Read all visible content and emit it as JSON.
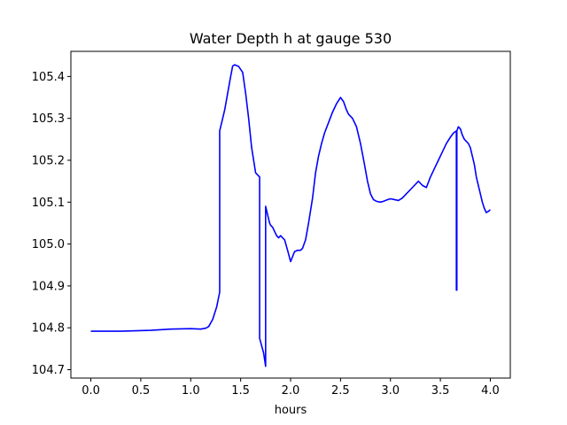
{
  "chart_data": {
    "type": "line",
    "title": "Water Depth h at gauge 530",
    "xlabel": "hours",
    "ylabel": "",
    "xlim": [
      -0.2,
      4.2
    ],
    "ylim": [
      104.68,
      105.46
    ],
    "xticks": [
      0.0,
      0.5,
      1.0,
      1.5,
      2.0,
      2.5,
      3.0,
      3.5,
      4.0
    ],
    "xtick_labels": [
      "0.0",
      "0.5",
      "1.0",
      "1.5",
      "2.0",
      "2.5",
      "3.0",
      "3.5",
      "4.0"
    ],
    "yticks": [
      104.7,
      104.8,
      104.9,
      105.0,
      105.1,
      105.2,
      105.3,
      105.4
    ],
    "ytick_labels": [
      "104.7",
      "104.8",
      "104.9",
      "105.0",
      "105.1",
      "105.2",
      "105.3",
      "105.4"
    ],
    "grid": false,
    "series": [
      {
        "color": "#0000ff",
        "x": [
          0.0,
          0.3,
          0.6,
          0.8,
          1.0,
          1.1,
          1.15,
          1.18,
          1.22,
          1.26,
          1.29,
          1.29,
          1.31,
          1.34,
          1.37,
          1.4,
          1.42,
          1.44,
          1.46,
          1.48,
          1.52,
          1.55,
          1.58,
          1.61,
          1.65,
          1.69,
          1.69,
          1.73,
          1.75,
          1.75,
          1.76,
          1.77,
          1.79,
          1.8,
          1.82,
          1.84,
          1.86,
          1.88,
          1.9,
          1.92,
          1.94,
          1.97,
          2.0,
          2.02,
          2.04,
          2.07,
          2.1,
          2.12,
          2.15,
          2.18,
          2.22,
          2.25,
          2.28,
          2.31,
          2.34,
          2.38,
          2.42,
          2.46,
          2.5,
          2.53,
          2.56,
          2.58,
          2.62,
          2.66,
          2.7,
          2.74,
          2.77,
          2.8,
          2.83,
          2.86,
          2.9,
          2.93,
          2.96,
          3.0,
          3.04,
          3.08,
          3.12,
          3.16,
          3.2,
          3.24,
          3.28,
          3.32,
          3.36,
          3.4,
          3.44,
          3.48,
          3.52,
          3.56,
          3.6,
          3.63,
          3.66,
          3.66,
          3.665,
          3.665,
          3.68,
          3.7,
          3.72,
          3.74,
          3.76,
          3.78,
          3.8,
          3.82,
          3.84,
          3.86,
          3.88,
          3.9,
          3.92,
          3.94,
          3.96,
          3.98,
          4.0
        ],
        "y": [
          104.792,
          104.792,
          104.794,
          104.797,
          104.798,
          104.797,
          104.799,
          104.803,
          104.82,
          104.85,
          104.885,
          105.27,
          105.29,
          105.32,
          105.36,
          105.4,
          105.425,
          105.428,
          105.426,
          105.424,
          105.41,
          105.36,
          105.3,
          105.23,
          105.17,
          105.16,
          104.775,
          104.74,
          104.708,
          105.09,
          105.08,
          105.07,
          105.05,
          105.045,
          105.04,
          105.03,
          105.02,
          105.015,
          105.02,
          105.015,
          105.01,
          104.985,
          104.958,
          104.97,
          104.982,
          104.985,
          104.985,
          104.99,
          105.01,
          105.05,
          105.11,
          105.17,
          105.21,
          105.24,
          105.265,
          105.29,
          105.315,
          105.335,
          105.35,
          105.34,
          105.32,
          105.31,
          105.3,
          105.28,
          105.24,
          105.19,
          105.15,
          105.12,
          105.106,
          105.102,
          105.1,
          105.102,
          105.105,
          105.108,
          105.106,
          105.104,
          105.11,
          105.12,
          105.13,
          105.14,
          105.15,
          105.14,
          105.135,
          105.16,
          105.18,
          105.2,
          105.22,
          105.24,
          105.255,
          105.265,
          105.27,
          104.89,
          104.89,
          105.27,
          105.28,
          105.275,
          105.26,
          105.25,
          105.245,
          105.24,
          105.23,
          105.21,
          105.19,
          105.16,
          105.14,
          105.12,
          105.1,
          105.085,
          105.075,
          105.078,
          105.082
        ]
      }
    ]
  }
}
